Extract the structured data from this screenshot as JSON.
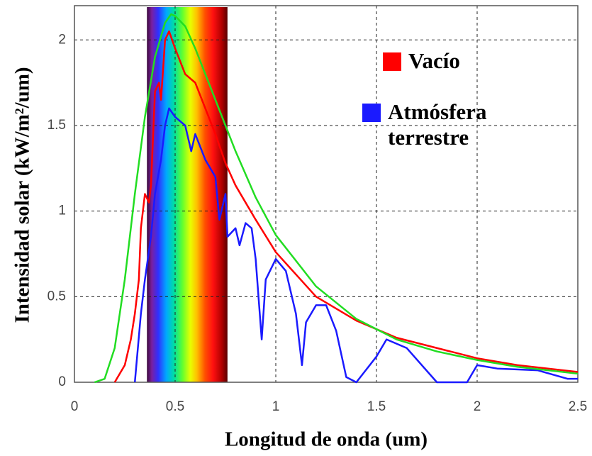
{
  "chart_data": {
    "type": "line",
    "xlabel": "Longitud de onda (um)",
    "ylabel": "Intensidad solar (kW/m²/um)",
    "xlim": [
      0,
      2.5
    ],
    "xticks": [
      0,
      0.5,
      1,
      1.5,
      2,
      2.5
    ],
    "ylim": [
      0,
      2.2
    ],
    "yticks": [
      0,
      0.5,
      1,
      1.5,
      2
    ],
    "grid": true,
    "visible_range": [
      0.36,
      0.76
    ],
    "series": [
      {
        "name": "Vacío",
        "color": "#ff0000",
        "x": [
          0.2,
          0.25,
          0.28,
          0.3,
          0.32,
          0.33,
          0.35,
          0.37,
          0.38,
          0.4,
          0.42,
          0.43,
          0.45,
          0.47,
          0.5,
          0.55,
          0.6,
          0.65,
          0.7,
          0.75,
          0.8,
          0.9,
          1.0,
          1.1,
          1.2,
          1.4,
          1.6,
          1.8,
          2.0,
          2.2,
          2.5
        ],
        "values": [
          0,
          0.1,
          0.25,
          0.4,
          0.6,
          0.9,
          1.1,
          1.05,
          1.15,
          1.7,
          1.75,
          1.65,
          2.0,
          2.05,
          1.95,
          1.8,
          1.75,
          1.6,
          1.45,
          1.28,
          1.15,
          0.95,
          0.76,
          0.63,
          0.5,
          0.36,
          0.26,
          0.2,
          0.14,
          0.1,
          0.06
        ]
      },
      {
        "name": "Atmósfera terrestre",
        "color": "#1a1aff",
        "x": [
          0.3,
          0.33,
          0.35,
          0.38,
          0.4,
          0.43,
          0.45,
          0.47,
          0.5,
          0.55,
          0.58,
          0.6,
          0.65,
          0.7,
          0.72,
          0.75,
          0.76,
          0.8,
          0.82,
          0.85,
          0.88,
          0.9,
          0.93,
          0.95,
          1.0,
          1.05,
          1.1,
          1.13,
          1.15,
          1.2,
          1.25,
          1.3,
          1.35,
          1.4,
          1.5,
          1.55,
          1.65,
          1.8,
          1.95,
          2.0,
          2.1,
          2.3,
          2.45,
          2.5
        ],
        "values": [
          0,
          0.4,
          0.6,
          0.85,
          1.1,
          1.3,
          1.5,
          1.6,
          1.55,
          1.5,
          1.35,
          1.45,
          1.3,
          1.2,
          0.95,
          1.1,
          0.85,
          0.9,
          0.8,
          0.93,
          0.9,
          0.72,
          0.25,
          0.6,
          0.72,
          0.65,
          0.4,
          0.1,
          0.35,
          0.45,
          0.45,
          0.3,
          0.03,
          0,
          0.15,
          0.25,
          0.2,
          0,
          0,
          0.1,
          0.08,
          0.07,
          0.02,
          0.02
        ]
      },
      {
        "color": "#22dd22",
        "x": [
          0.1,
          0.15,
          0.2,
          0.25,
          0.3,
          0.35,
          0.4,
          0.45,
          0.48,
          0.5,
          0.55,
          0.6,
          0.7,
          0.8,
          0.9,
          1.0,
          1.2,
          1.4,
          1.6,
          1.8,
          2.0,
          2.2,
          2.5
        ],
        "values": [
          0,
          0.02,
          0.2,
          0.6,
          1.1,
          1.55,
          1.9,
          2.1,
          2.15,
          2.14,
          2.08,
          1.95,
          1.65,
          1.35,
          1.08,
          0.86,
          0.56,
          0.37,
          0.25,
          0.18,
          0.13,
          0.09,
          0.05
        ]
      }
    ]
  }
}
